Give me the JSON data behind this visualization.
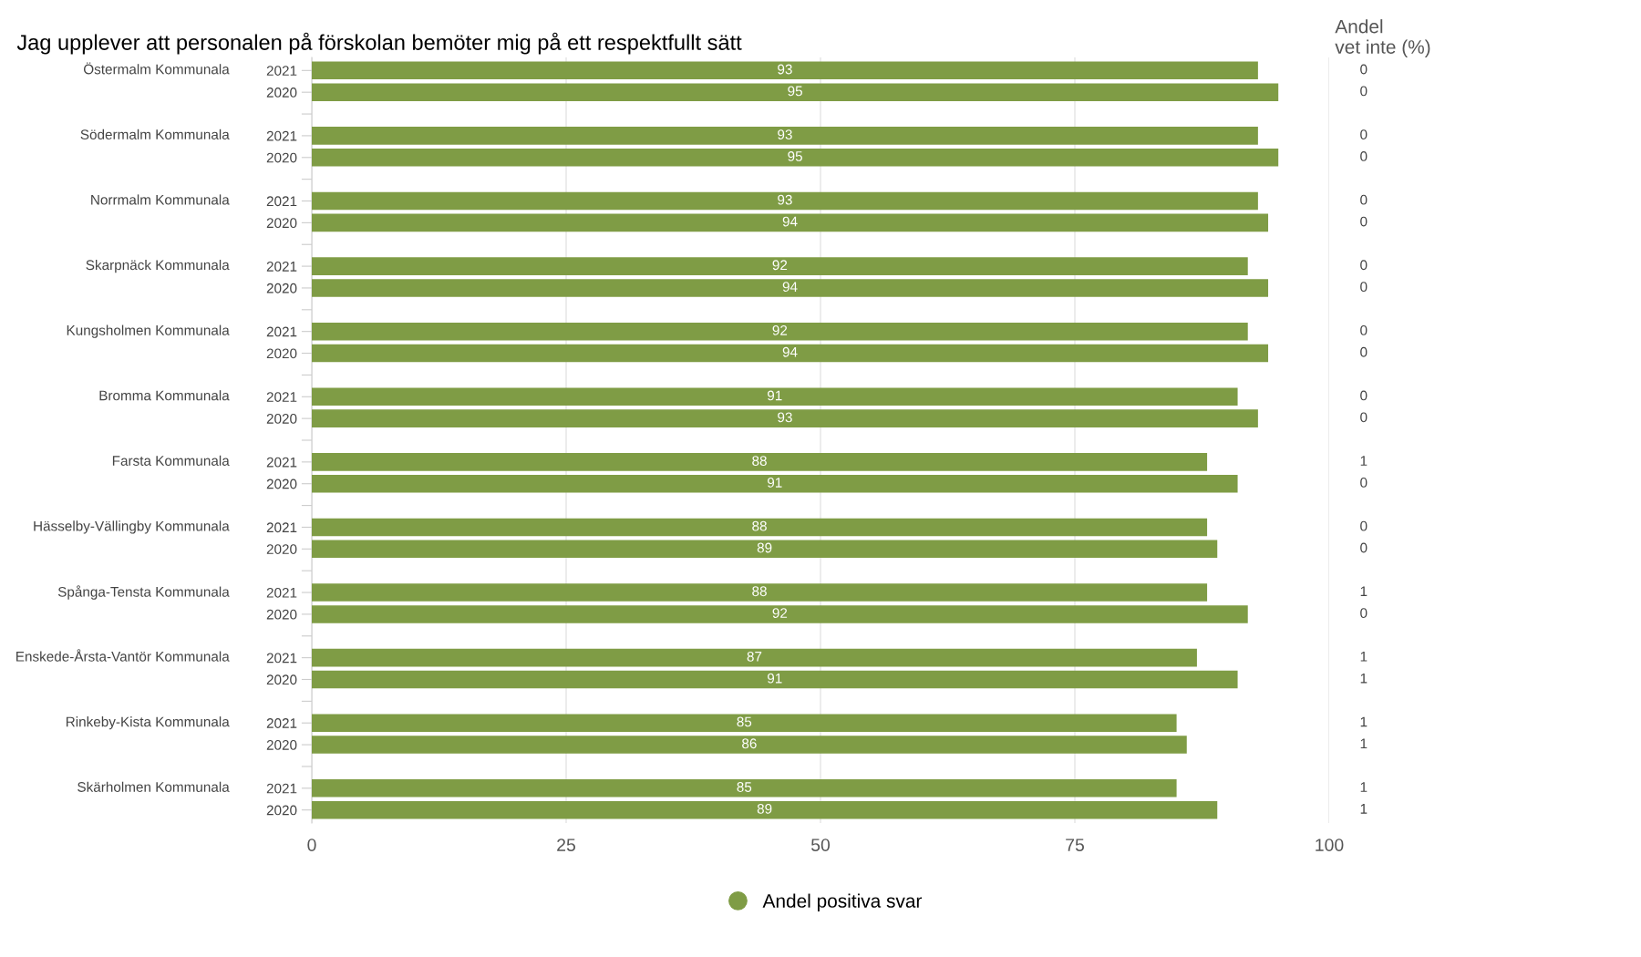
{
  "chart_data": [
    {
      "type": "bar",
      "orientation": "horizontal",
      "title": "Jag upplever att personalen på förskolan bemöter mig på ett respektfullt sätt",
      "categories": [
        "2021",
        "2020",
        null,
        "2021",
        "2020",
        null,
        "2021",
        "2020",
        null,
        "2021",
        "2020",
        null,
        "2021",
        "2020",
        null,
        "2021",
        "2020",
        null,
        "2021",
        "2020",
        null,
        "2021",
        "2020",
        null,
        "2021",
        "2020",
        null,
        "2021",
        "2020",
        null,
        "2021",
        "2020",
        null,
        "2021",
        "2020"
      ],
      "annotations": [
        "Östermalm Kommunala",
        "Södermalm Kommunala",
        "Norrmalm Kommunala",
        "Skarpnäck Kommunala",
        "Kungsholmen Kommunala",
        "Bromma Kommunala",
        "Farsta Kommunala",
        "Hässelby-Vällingby Kommunala",
        "Spånga-Tensta Kommunala",
        "Enskede-Årsta-Vantör Kommunala",
        "Rinkeby-Kista Kommunala",
        "Skärholmen Kommunala"
      ],
      "series": [
        {
          "name": "Andel positiva svar",
          "color": "#7f9c45",
          "values": [
            93,
            95,
            null,
            93,
            95,
            null,
            93,
            94,
            null,
            92,
            94,
            null,
            92,
            94,
            null,
            91,
            93,
            null,
            88,
            91,
            null,
            88,
            89,
            null,
            88,
            92,
            null,
            87,
            91,
            null,
            85,
            86,
            null,
            85,
            89
          ]
        }
      ],
      "xlim": [
        0,
        100
      ],
      "xticks": [
        0,
        25,
        50,
        75,
        100
      ],
      "grid": "x",
      "legend": "bottom",
      "data_labels": true
    },
    {
      "type": "other",
      "title": "Andel\nvet inte (%)",
      "data_labels": true,
      "values": [
        0,
        0,
        null,
        0,
        0,
        null,
        0,
        0,
        null,
        0,
        0,
        null,
        0,
        0,
        null,
        0,
        0,
        null,
        1,
        0,
        null,
        0,
        0,
        null,
        1,
        0,
        null,
        1,
        1,
        null,
        1,
        1,
        null,
        1,
        1
      ]
    }
  ]
}
